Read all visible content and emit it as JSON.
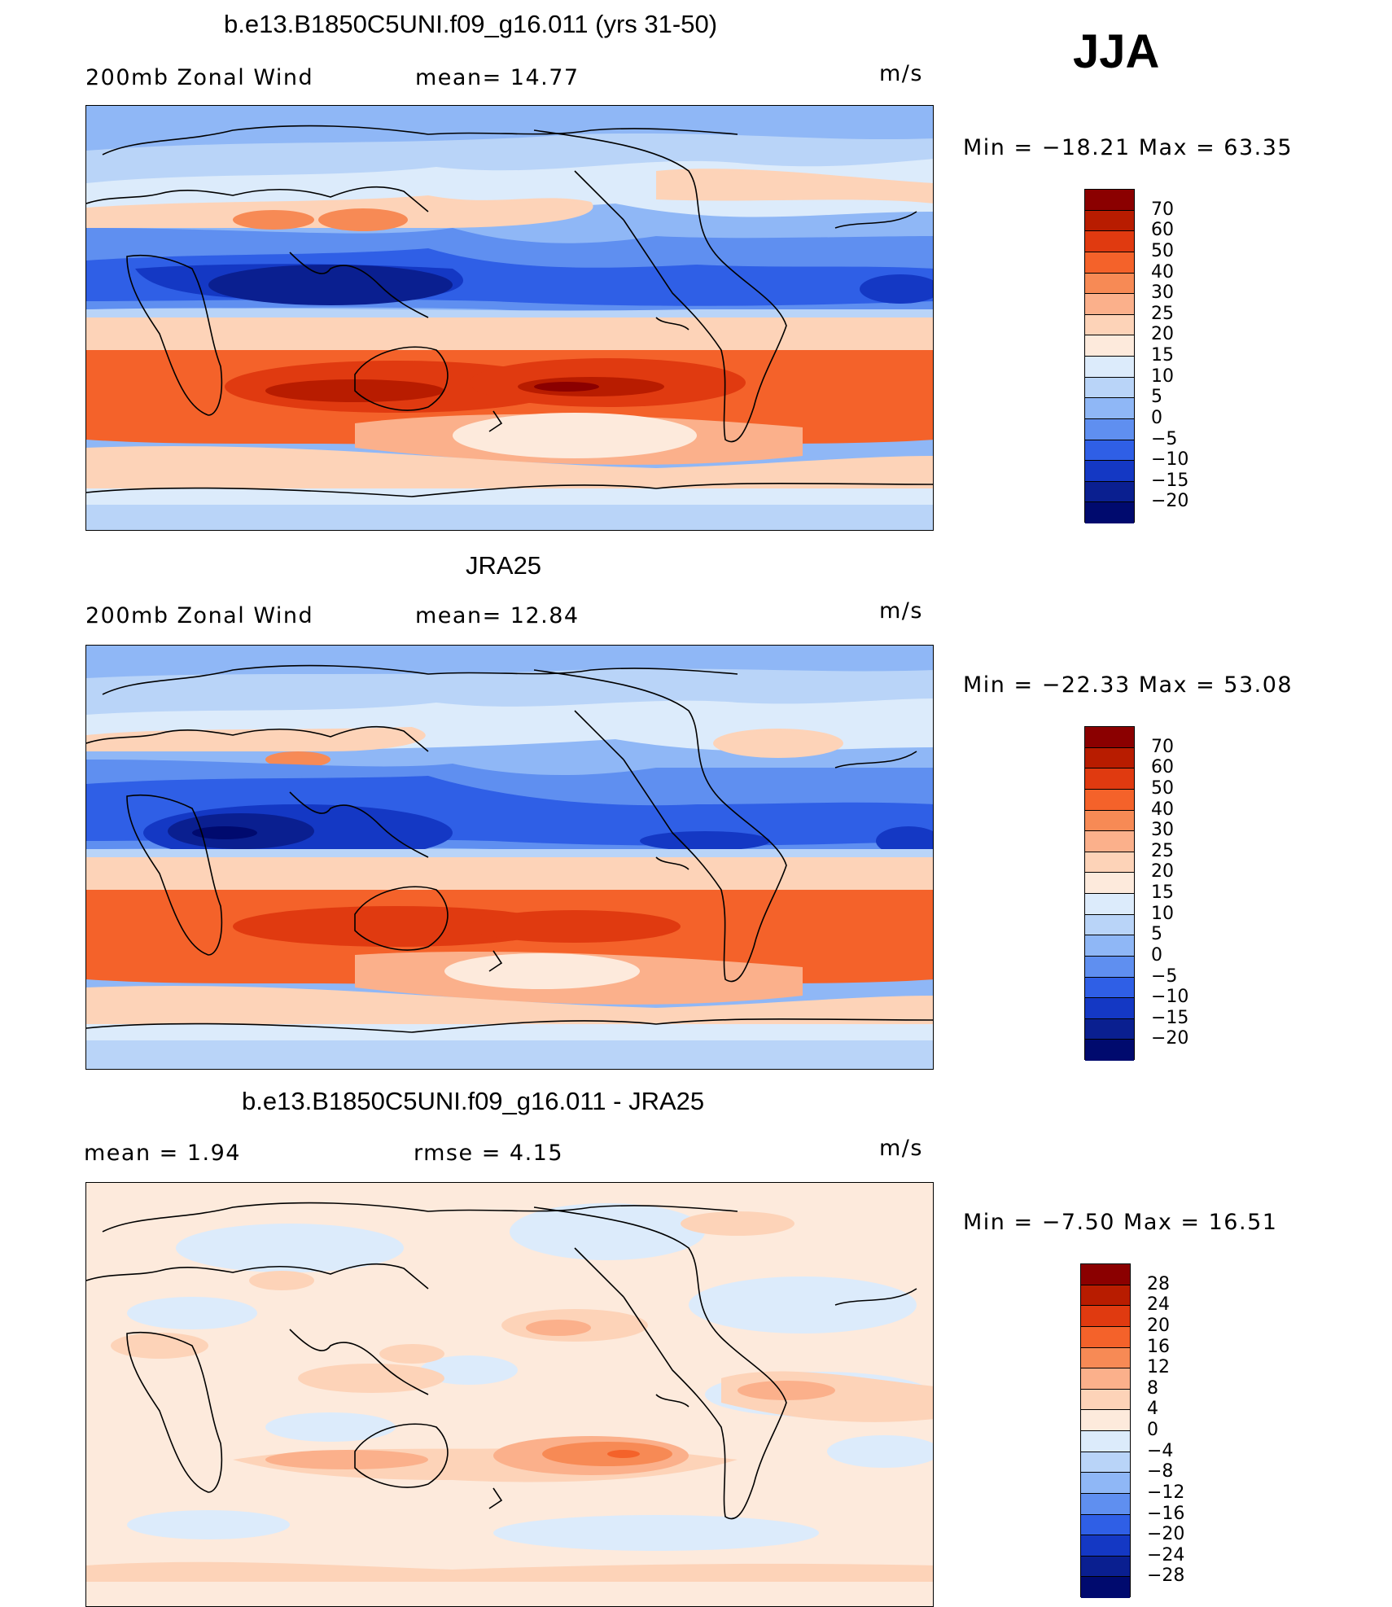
{
  "season": "JJA",
  "panels": [
    {
      "title": "b.e13.B1850C5UNI.f09_g16.011 (yrs 31-50)",
      "left_text": "200mb  Zonal  Wind",
      "mid_text": "mean=   14.77",
      "units": "m/s",
      "minmax": "Min  =  −18.21  Max  =    63.35"
    },
    {
      "title": "JRA25",
      "left_text": "200mb  Zonal  Wind",
      "mid_text": "mean=   12.84",
      "units": "m/s",
      "minmax": "Min  =  −22.33  Max  =    53.08"
    },
    {
      "title": "b.e13.B1850C5UNI.f09_g16.011 - JRA25",
      "left_text": "mean  =     1.94",
      "mid_text": "rmse  =     4.15",
      "units": "m/s",
      "minmax": "Min  =    −7.50  Max  =    16.51"
    }
  ],
  "colorbars": [
    {
      "labels": [
        "70",
        "60",
        "50",
        "40",
        "30",
        "25",
        "20",
        "15",
        "10",
        "5",
        "0",
        "−5",
        "−10",
        "−15",
        "−20"
      ],
      "colors": [
        "#8b0000",
        "#b81c00",
        "#e03a10",
        "#f4622a",
        "#f78a55",
        "#fbb08b",
        "#fdd3b8",
        "#fdeadc",
        "#dcebfb",
        "#b9d4f8",
        "#8fb7f6",
        "#5f8ff0",
        "#2f5fe6",
        "#1438c4",
        "#0a1f90",
        "#000a6e"
      ]
    },
    {
      "labels": [
        "70",
        "60",
        "50",
        "40",
        "30",
        "25",
        "20",
        "15",
        "10",
        "5",
        "0",
        "−5",
        "−10",
        "−15",
        "−20"
      ],
      "colors": [
        "#8b0000",
        "#b81c00",
        "#e03a10",
        "#f4622a",
        "#f78a55",
        "#fbb08b",
        "#fdd3b8",
        "#fdeadc",
        "#dcebfb",
        "#b9d4f8",
        "#8fb7f6",
        "#5f8ff0",
        "#2f5fe6",
        "#1438c4",
        "#0a1f90",
        "#000a6e"
      ]
    },
    {
      "labels": [
        "28",
        "24",
        "20",
        "16",
        "12",
        "8",
        "4",
        "0",
        "−4",
        "−8",
        "−12",
        "−16",
        "−20",
        "−24",
        "−28"
      ],
      "colors": [
        "#8b0000",
        "#b81c00",
        "#e03a10",
        "#f4622a",
        "#f78a55",
        "#fbb08b",
        "#fdd3b8",
        "#fdeadc",
        "#dcebfb",
        "#b9d4f8",
        "#8fb7f6",
        "#5f8ff0",
        "#2f5fe6",
        "#1438c4",
        "#0a1f90",
        "#000a6e"
      ]
    }
  ]
}
